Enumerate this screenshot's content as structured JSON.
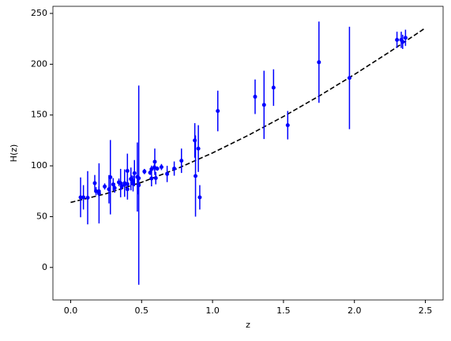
{
  "chart_data": {
    "type": "scatter",
    "xlabel": "z",
    "ylabel": "H(z)",
    "xlim": [
      -0.125,
      2.625
    ],
    "ylim": [
      -32,
      257
    ],
    "xticks": [
      {
        "value": 0,
        "label": "0.0"
      },
      0.5,
      {
        "value": 1,
        "label": "1.0"
      },
      1.5,
      {
        "value": 2,
        "label": "2.0"
      },
      2.5
    ],
    "yticks": [
      0,
      50,
      100,
      150,
      200,
      250
    ],
    "points": {
      "color": "#0000ff",
      "x": [
        0.07,
        0.09,
        0.12,
        0.17,
        0.179,
        0.199,
        0.2,
        0.24,
        0.27,
        0.28,
        0.3,
        0.31,
        0.34,
        0.352,
        0.36,
        0.38,
        0.3802,
        0.4,
        0.4,
        0.4004,
        0.4247,
        0.43,
        0.44,
        0.44,
        0.4497,
        0.47,
        0.4783,
        0.48,
        0.48,
        0.52,
        0.56,
        0.57,
        0.57,
        0.59,
        0.593,
        0.6,
        0.61,
        0.64,
        0.68,
        0.73,
        0.781,
        0.875,
        0.88,
        0.9,
        0.91,
        1.037,
        1.3,
        1.363,
        1.43,
        1.53,
        1.75,
        1.965,
        2.3,
        2.33,
        2.34,
        2.36
      ],
      "values": [
        69,
        69,
        68.6,
        83,
        75,
        75,
        72.9,
        79.7,
        77,
        88.8,
        81.7,
        78.2,
        83.8,
        83,
        79.9,
        81.5,
        83,
        95,
        82,
        77,
        87.1,
        86.5,
        82.6,
        84.8,
        92.8,
        89,
        80.9,
        81,
        87.8,
        94.4,
        93.3,
        87.6,
        96.8,
        98.5,
        104,
        87.9,
        97.3,
        98.8,
        92,
        97.3,
        105,
        125,
        90,
        117,
        69,
        154,
        168,
        160,
        177,
        140,
        202,
        186.5,
        224,
        224,
        222,
        226
      ],
      "errors": [
        19.6,
        12,
        26.2,
        8,
        4,
        5,
        29.6,
        3,
        14,
        36.6,
        6.2,
        4.7,
        3.7,
        14,
        3.4,
        1.9,
        13.5,
        17,
        2,
        10.2,
        11.2,
        4,
        7.8,
        1.8,
        12.9,
        34,
        9,
        98,
        2,
        2.6,
        2.3,
        7.8,
        3.4,
        3.2,
        13,
        6.1,
        2.1,
        3,
        8,
        7,
        12,
        17,
        40,
        23,
        12,
        20,
        17,
        33.6,
        18,
        14,
        40,
        50.4,
        8,
        8,
        7,
        8
      ]
    },
    "model": {
      "color": "#000000",
      "x": [
        0,
        0.25,
        0.5,
        0.75,
        1,
        1.25,
        1.5,
        1.75,
        2,
        2.25,
        2.5
      ],
      "values": [
        64,
        72.6,
        83.8,
        97.2,
        112.7,
        129.9,
        148.6,
        168.6,
        189.9,
        212.3,
        235.7
      ]
    }
  }
}
